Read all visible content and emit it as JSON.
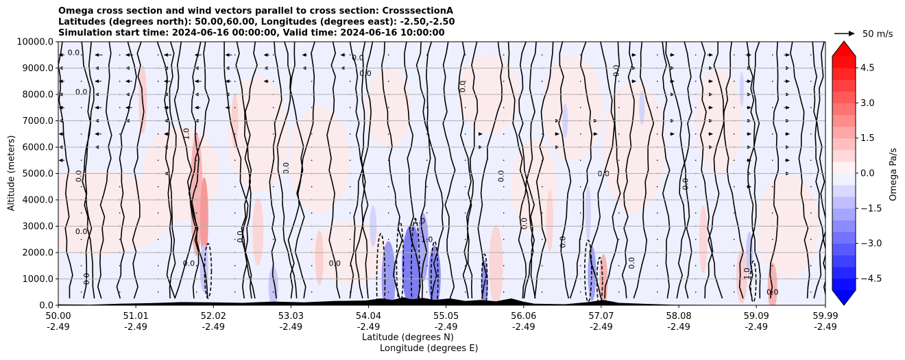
{
  "chart_data": {
    "type": "heatmap",
    "title_lines": [
      "Omega cross section and wind vectors parallel to cross section: CrosssectionA",
      "Latitudes (degrees north): 50.00,60.00, Longitudes (degrees east): -2.50,-2.50",
      "Simulation start time: 2024-06-16 00:00:00, Valid time: 2024-06-16 10:00:00"
    ],
    "xlabel_primary": "Latitude (degrees N)",
    "xlabel_secondary": "Longitude (degrees E)",
    "ylabel": "Altitude (meters)",
    "x_ticks": [
      {
        "lat": "50.00",
        "lon": "-2.49",
        "value": 50.0
      },
      {
        "lat": "51.01",
        "lon": "-2.49",
        "value": 51.01
      },
      {
        "lat": "52.02",
        "lon": "-2.49",
        "value": 52.02
      },
      {
        "lat": "53.03",
        "lon": "-2.49",
        "value": 53.03
      },
      {
        "lat": "54.04",
        "lon": "-2.49",
        "value": 54.04
      },
      {
        "lat": "55.05",
        "lon": "-2.49",
        "value": 55.05
      },
      {
        "lat": "56.06",
        "lon": "-2.49",
        "value": 56.06
      },
      {
        "lat": "57.07",
        "lon": "-2.49",
        "value": 57.07
      },
      {
        "lat": "58.08",
        "lon": "-2.49",
        "value": 58.08
      },
      {
        "lat": "59.09",
        "lon": "-2.49",
        "value": 59.09
      },
      {
        "lat": "59.99",
        "lon": "-2.49",
        "value": 59.99
      }
    ],
    "xlim": [
      50.0,
      59.99
    ],
    "y_ticks": [
      "0.0",
      "1000.0",
      "2000.0",
      "3000.0",
      "4000.0",
      "5000.0",
      "6000.0",
      "7000.0",
      "8000.0",
      "9000.0",
      "10000.0"
    ],
    "ylim": [
      0,
      10000
    ],
    "grid": "horizontal",
    "colorbar": {
      "label": "Omega Pa/s",
      "ticks": [
        "4.5",
        "3.0",
        "1.5",
        "0.0",
        "−1.5",
        "−3.0",
        "−4.5"
      ],
      "tick_values": [
        4.5,
        3.0,
        1.5,
        0.0,
        -1.5,
        -3.0,
        -4.5
      ],
      "range": [
        -5,
        5
      ],
      "colormap": "bwr",
      "colors": {
        "negative": "#0000ff",
        "zero": "#ffffff",
        "positive": "#ff0000"
      },
      "extend": "both"
    },
    "quiver_key": {
      "label": "50 m/s"
    },
    "contour_labels": [
      "0.0",
      "1.0",
      "-1.0"
    ],
    "terrain_color": "#000000",
    "wind_arrows": [
      {
        "x": 50.03,
        "alt": 9500,
        "u": -4
      },
      {
        "x": 50.03,
        "alt": 9000,
        "u": -4
      },
      {
        "x": 50.03,
        "alt": 8500,
        "u": -4
      },
      {
        "x": 50.03,
        "alt": 8000,
        "u": -4
      },
      {
        "x": 50.03,
        "alt": 7500,
        "u": -4
      },
      {
        "x": 50.03,
        "alt": 7000,
        "u": -4
      },
      {
        "x": 50.03,
        "alt": 6500,
        "u": -4
      },
      {
        "x": 50.03,
        "alt": 6000,
        "u": -4
      },
      {
        "x": 50.03,
        "alt": 5500,
        "u": -4
      },
      {
        "x": 50.5,
        "alt": 9500,
        "u": -6
      },
      {
        "x": 50.5,
        "alt": 9000,
        "u": -6
      },
      {
        "x": 50.5,
        "alt": 8500,
        "u": -5
      },
      {
        "x": 50.5,
        "alt": 8000,
        "u": -5
      },
      {
        "x": 50.5,
        "alt": 7500,
        "u": -5
      },
      {
        "x": 50.5,
        "alt": 7000,
        "u": -5
      },
      {
        "x": 50.5,
        "alt": 6500,
        "u": -5
      },
      {
        "x": 50.5,
        "alt": 6000,
        "u": -4
      },
      {
        "x": 50.9,
        "alt": 9500,
        "u": -6
      },
      {
        "x": 50.9,
        "alt": 9000,
        "u": -6
      },
      {
        "x": 50.9,
        "alt": 8500,
        "u": -5
      },
      {
        "x": 50.9,
        "alt": 8000,
        "u": -5
      },
      {
        "x": 50.9,
        "alt": 7500,
        "u": -5
      },
      {
        "x": 50.9,
        "alt": 7000,
        "u": -4
      },
      {
        "x": 51.4,
        "alt": 9500,
        "u": -6
      },
      {
        "x": 51.4,
        "alt": 9000,
        "u": -6
      },
      {
        "x": 51.4,
        "alt": 8500,
        "u": -5
      },
      {
        "x": 51.4,
        "alt": 8000,
        "u": -5
      },
      {
        "x": 51.4,
        "alt": 7500,
        "u": -5
      },
      {
        "x": 51.4,
        "alt": 7000,
        "u": -4
      },
      {
        "x": 51.4,
        "alt": 6500,
        "u": -4
      },
      {
        "x": 51.4,
        "alt": 6000,
        "u": -4
      },
      {
        "x": 51.4,
        "alt": 5000,
        "u": -3
      },
      {
        "x": 51.8,
        "alt": 9500,
        "u": -5
      },
      {
        "x": 51.8,
        "alt": 9000,
        "u": -5
      },
      {
        "x": 51.8,
        "alt": 8500,
        "u": -5
      },
      {
        "x": 51.8,
        "alt": 8000,
        "u": -4
      },
      {
        "x": 51.8,
        "alt": 7500,
        "u": -4
      },
      {
        "x": 51.8,
        "alt": 7000,
        "u": -4
      },
      {
        "x": 52.2,
        "alt": 9500,
        "u": -5
      },
      {
        "x": 52.2,
        "alt": 9000,
        "u": -5
      },
      {
        "x": 52.2,
        "alt": 8500,
        "u": -4
      },
      {
        "x": 52.2,
        "alt": 8000,
        "u": -4
      },
      {
        "x": 52.2,
        "alt": 7500,
        "u": -3
      },
      {
        "x": 52.7,
        "alt": 9500,
        "u": -4
      },
      {
        "x": 52.7,
        "alt": 9000,
        "u": -4
      },
      {
        "x": 52.7,
        "alt": 8500,
        "u": -3
      },
      {
        "x": 53.2,
        "alt": 9500,
        "u": -3
      },
      {
        "x": 53.2,
        "alt": 9000,
        "u": -3
      },
      {
        "x": 53.7,
        "alt": 9500,
        "u": -3
      },
      {
        "x": 53.7,
        "alt": 9000,
        "u": -2
      },
      {
        "x": 55.5,
        "alt": 6500,
        "u": 2
      },
      {
        "x": 55.5,
        "alt": 6000,
        "u": 2
      },
      {
        "x": 56.5,
        "alt": 7000,
        "u": 3
      },
      {
        "x": 56.5,
        "alt": 6500,
        "u": 3
      },
      {
        "x": 56.5,
        "alt": 6000,
        "u": 3
      },
      {
        "x": 57.0,
        "alt": 7000,
        "u": 3
      },
      {
        "x": 57.0,
        "alt": 6500,
        "u": 3
      },
      {
        "x": 57.5,
        "alt": 9500,
        "u": 3
      },
      {
        "x": 57.5,
        "alt": 9000,
        "u": 3
      },
      {
        "x": 57.5,
        "alt": 8500,
        "u": 3
      },
      {
        "x": 58.0,
        "alt": 9500,
        "u": 3
      },
      {
        "x": 58.0,
        "alt": 9000,
        "u": 3
      },
      {
        "x": 58.0,
        "alt": 8500,
        "u": 3
      },
      {
        "x": 58.0,
        "alt": 8000,
        "u": 3
      },
      {
        "x": 58.0,
        "alt": 7000,
        "u": 3
      },
      {
        "x": 58.0,
        "alt": 6500,
        "u": 3
      },
      {
        "x": 58.5,
        "alt": 9500,
        "u": 4
      },
      {
        "x": 58.5,
        "alt": 9000,
        "u": 4
      },
      {
        "x": 58.5,
        "alt": 8500,
        "u": 3
      },
      {
        "x": 58.5,
        "alt": 8000,
        "u": 3
      },
      {
        "x": 58.5,
        "alt": 7500,
        "u": 3
      },
      {
        "x": 58.5,
        "alt": 7000,
        "u": 3
      },
      {
        "x": 58.5,
        "alt": 6500,
        "u": 3
      },
      {
        "x": 58.5,
        "alt": 6000,
        "u": 3
      },
      {
        "x": 59.0,
        "alt": 9500,
        "u": 4
      },
      {
        "x": 59.0,
        "alt": 9000,
        "u": 4
      },
      {
        "x": 59.0,
        "alt": 8500,
        "u": 4
      },
      {
        "x": 59.0,
        "alt": 8000,
        "u": 4
      },
      {
        "x": 59.0,
        "alt": 7500,
        "u": 3
      },
      {
        "x": 59.0,
        "alt": 7000,
        "u": 3
      },
      {
        "x": 59.0,
        "alt": 6500,
        "u": 3
      },
      {
        "x": 59.0,
        "alt": 6000,
        "u": 3
      },
      {
        "x": 59.0,
        "alt": 5500,
        "u": 3
      },
      {
        "x": 59.0,
        "alt": 5000,
        "u": 3
      },
      {
        "x": 59.0,
        "alt": 4500,
        "u": 3
      },
      {
        "x": 59.5,
        "alt": 9500,
        "u": 4
      },
      {
        "x": 59.5,
        "alt": 9000,
        "u": 4
      },
      {
        "x": 59.5,
        "alt": 8500,
        "u": 4
      },
      {
        "x": 59.5,
        "alt": 8000,
        "u": 4
      },
      {
        "x": 59.5,
        "alt": 7500,
        "u": 4
      },
      {
        "x": 59.5,
        "alt": 7000,
        "u": 3
      },
      {
        "x": 59.5,
        "alt": 6500,
        "u": 3
      },
      {
        "x": 59.5,
        "alt": 6000,
        "u": 3
      },
      {
        "x": 59.5,
        "alt": 5500,
        "u": 3
      },
      {
        "x": 59.5,
        "alt": 5000,
        "u": 3
      }
    ]
  }
}
